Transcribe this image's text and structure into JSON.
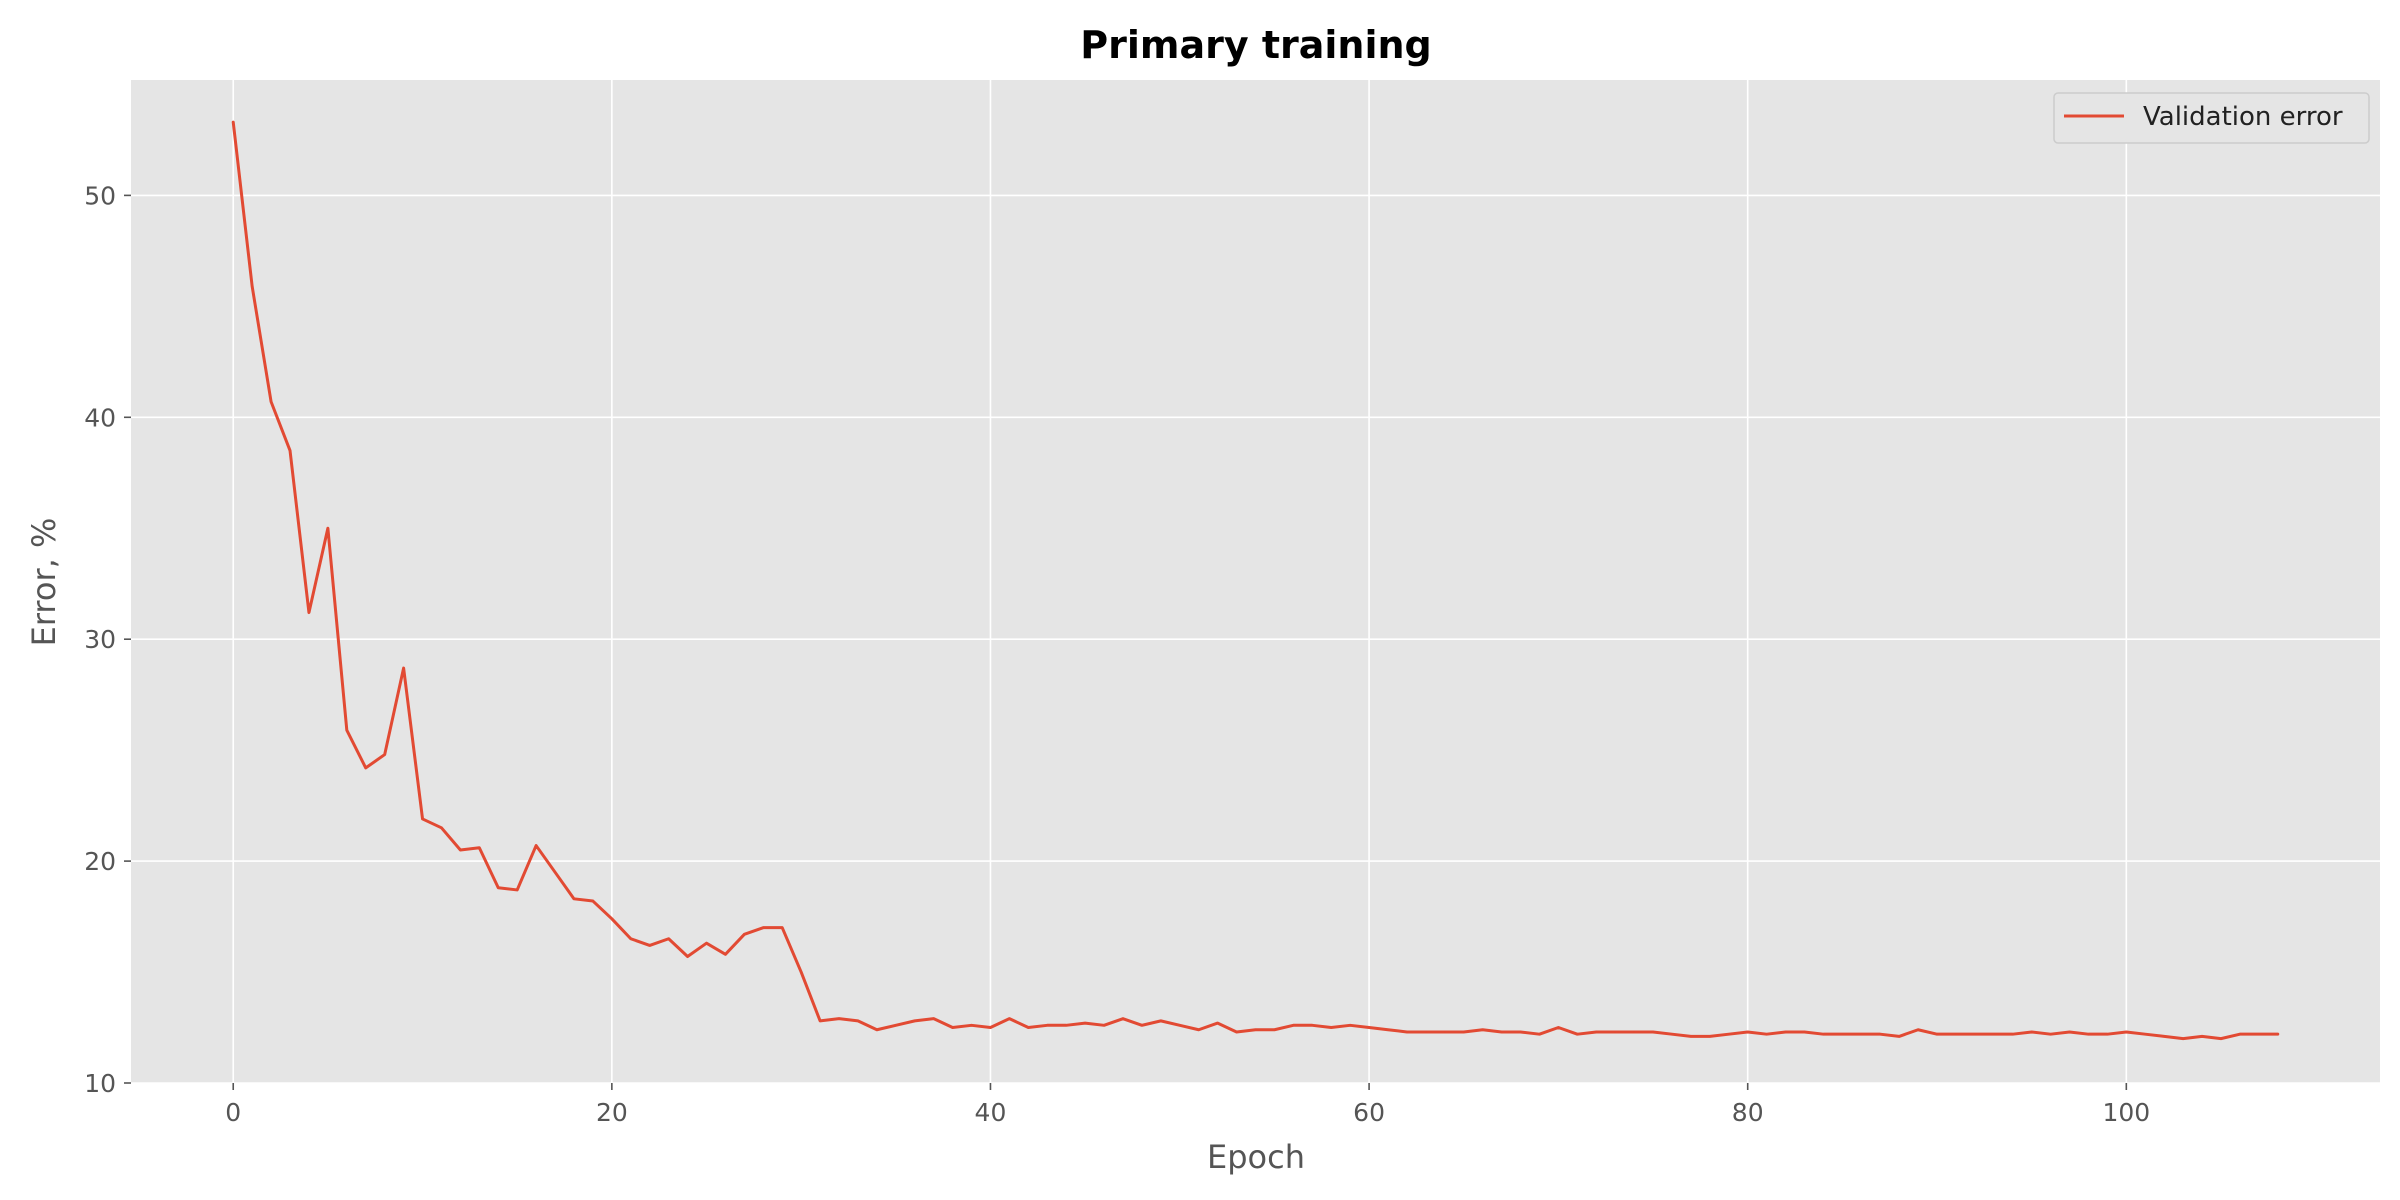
{
  "chart_data": {
    "type": "line",
    "title": "Primary training",
    "xlabel": "Epoch",
    "ylabel": "Error, %",
    "xlim": [
      -5.4,
      113.4
    ],
    "ylim": [
      10,
      55.2
    ],
    "x_ticks": [
      0,
      20,
      40,
      60,
      80,
      100
    ],
    "y_ticks": [
      10,
      20,
      30,
      40,
      50
    ],
    "x_tick_labels": [
      "0",
      "20",
      "40",
      "60",
      "80",
      "100"
    ],
    "y_tick_labels": [
      "10",
      "20",
      "30",
      "40",
      "50"
    ],
    "grid": true,
    "legend_position": "top-right",
    "colors": {
      "background": "#e5e5e5",
      "grid": "#ffffff",
      "series": "#e24a33"
    },
    "series": [
      {
        "name": "Validation error",
        "x": [
          0,
          1,
          2,
          3,
          4,
          5,
          6,
          7,
          8,
          9,
          10,
          11,
          12,
          13,
          14,
          15,
          16,
          17,
          18,
          19,
          20,
          21,
          22,
          23,
          24,
          25,
          26,
          27,
          28,
          29,
          30,
          31,
          32,
          33,
          34,
          35,
          36,
          37,
          38,
          39,
          40,
          41,
          42,
          43,
          44,
          45,
          46,
          47,
          48,
          49,
          50,
          51,
          52,
          53,
          54,
          55,
          56,
          57,
          58,
          59,
          60,
          61,
          62,
          63,
          64,
          65,
          66,
          67,
          68,
          69,
          70,
          71,
          72,
          73,
          74,
          75,
          76,
          77,
          78,
          79,
          80,
          81,
          82,
          83,
          84,
          85,
          86,
          87,
          88,
          89,
          90,
          91,
          92,
          93,
          94,
          95,
          96,
          97,
          98,
          99,
          100,
          101,
          102,
          103,
          104,
          105,
          106,
          107,
          108
        ],
        "values": [
          53.3,
          45.9,
          40.7,
          38.5,
          31.2,
          35.0,
          25.9,
          24.2,
          24.8,
          28.7,
          21.9,
          21.5,
          20.5,
          20.6,
          18.8,
          18.7,
          20.7,
          19.5,
          18.3,
          18.2,
          17.4,
          16.5,
          16.2,
          16.5,
          15.7,
          16.3,
          15.8,
          16.7,
          17.0,
          17.0,
          15.0,
          12.8,
          12.9,
          12.8,
          12.4,
          12.6,
          12.8,
          12.9,
          12.5,
          12.6,
          12.5,
          12.9,
          12.5,
          12.6,
          12.6,
          12.7,
          12.6,
          12.9,
          12.6,
          12.8,
          12.6,
          12.4,
          12.7,
          12.3,
          12.4,
          12.4,
          12.6,
          12.6,
          12.5,
          12.6,
          12.5,
          12.4,
          12.3,
          12.3,
          12.3,
          12.3,
          12.4,
          12.3,
          12.3,
          12.2,
          12.5,
          12.2,
          12.3,
          12.3,
          12.3,
          12.3,
          12.2,
          12.1,
          12.1,
          12.2,
          12.3,
          12.2,
          12.3,
          12.3,
          12.2,
          12.2,
          12.2,
          12.2,
          12.1,
          12.4,
          12.2,
          12.2,
          12.2,
          12.2,
          12.2,
          12.3,
          12.2,
          12.3,
          12.2,
          12.2,
          12.3,
          12.2,
          12.1,
          12.0,
          12.1,
          12.0,
          12.2,
          12.2,
          12.2
        ]
      }
    ]
  }
}
